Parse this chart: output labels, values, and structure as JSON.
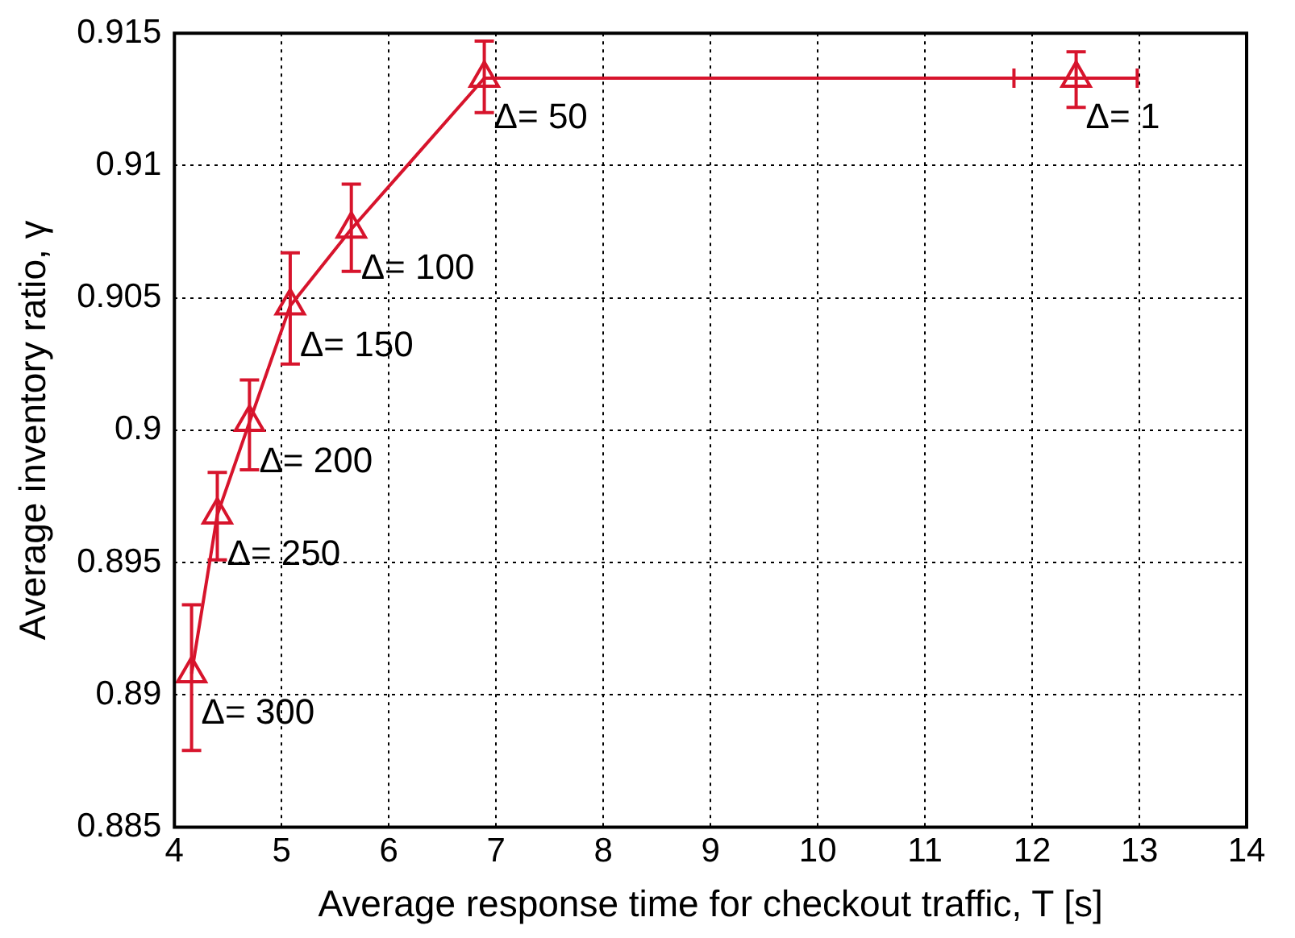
{
  "chart_data": {
    "type": "line",
    "xlabel": "Average response time for checkout traffic, T [s]",
    "ylabel": "Average inventory ratio, γ",
    "xlim": [
      4,
      14
    ],
    "xticks": [
      4,
      5,
      6,
      7,
      8,
      9,
      10,
      11,
      12,
      13,
      14
    ],
    "ylim": [
      0.885,
      0.915
    ],
    "yticks": [
      0.885,
      0.89,
      0.895,
      0.9,
      0.905,
      0.91,
      0.915
    ],
    "grid": true,
    "marker": "triangle",
    "line_style": "solid",
    "legend": false,
    "series": [
      {
        "color": "#d7142c",
        "x": [
          4.16,
          4.4,
          4.7,
          5.08,
          5.65,
          6.89,
          12.41
        ],
        "values": [
          0.8908,
          0.8968,
          0.9003,
          0.9047,
          0.9076,
          0.9133,
          0.9133
        ],
        "errors": [
          [
            0.8879,
            0.8934
          ],
          [
            0.8951,
            0.8984
          ],
          [
            0.8985,
            0.9019
          ],
          [
            0.9025,
            0.9067
          ],
          [
            0.906,
            0.9093
          ],
          [
            0.912,
            0.9147
          ],
          [
            0.9122,
            0.9143
          ]
        ],
        "xerrors": [
          null,
          null,
          null,
          null,
          null,
          null,
          [
            11.83,
            12.98
          ]
        ]
      }
    ],
    "annotations": [
      {
        "text": "Δ= 300",
        "x": 4.16,
        "y": 0.8908
      },
      {
        "text": "Δ= 250",
        "x": 4.4,
        "y": 0.8968
      },
      {
        "text": "Δ= 200",
        "x": 4.7,
        "y": 0.9003
      },
      {
        "text": "Δ= 150",
        "x": 5.08,
        "y": 0.9047
      },
      {
        "text": "Δ= 100",
        "x": 5.65,
        "y": 0.9076
      },
      {
        "text": "Δ= 50",
        "x": 6.89,
        "y": 0.9133
      },
      {
        "text": "Δ= 1",
        "x": 12.41,
        "y": 0.9133
      }
    ]
  }
}
